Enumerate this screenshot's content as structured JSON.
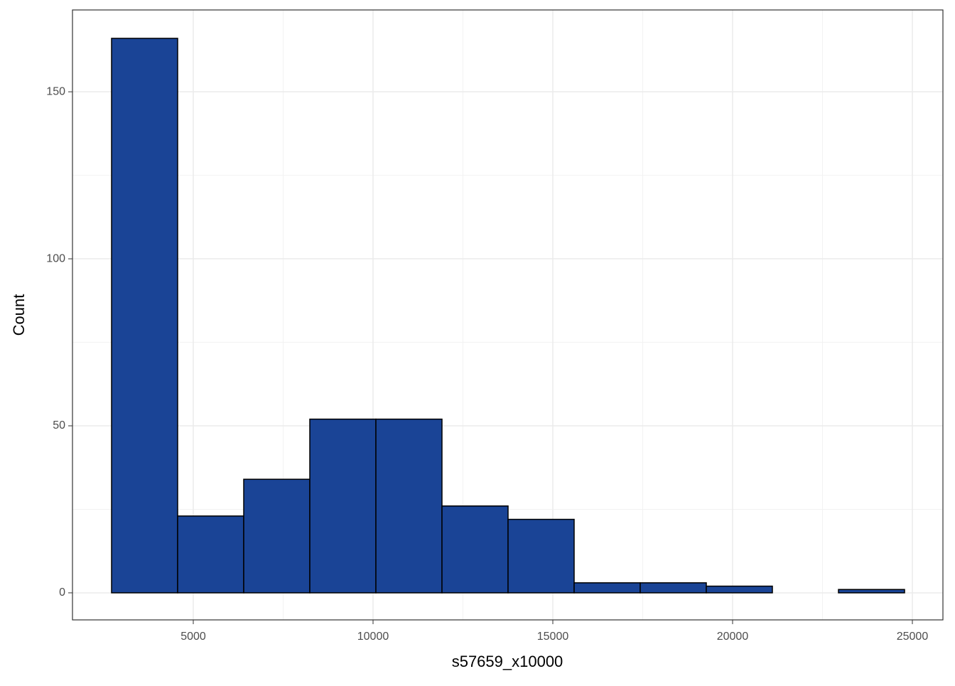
{
  "chart_data": {
    "type": "histogram",
    "x_label": "s57659_x10000",
    "y_label": "Count",
    "bins": [
      2727,
      4565,
      6403,
      8241,
      10079,
      11917,
      13755,
      15593,
      17431,
      19269,
      21107,
      22945,
      24783
    ],
    "values": [
      166,
      23,
      34,
      52,
      52,
      26,
      22,
      3,
      3,
      2,
      0,
      1
    ],
    "color": "#1a4496",
    "edge_color": "#000000",
    "xlim": [
      1640,
      25850
    ],
    "ylim": [
      -8.1,
      174.5
    ],
    "xticks": [
      5000,
      10000,
      15000,
      20000,
      25000
    ],
    "yticks": [
      0,
      50,
      100,
      150
    ],
    "grid": true
  }
}
